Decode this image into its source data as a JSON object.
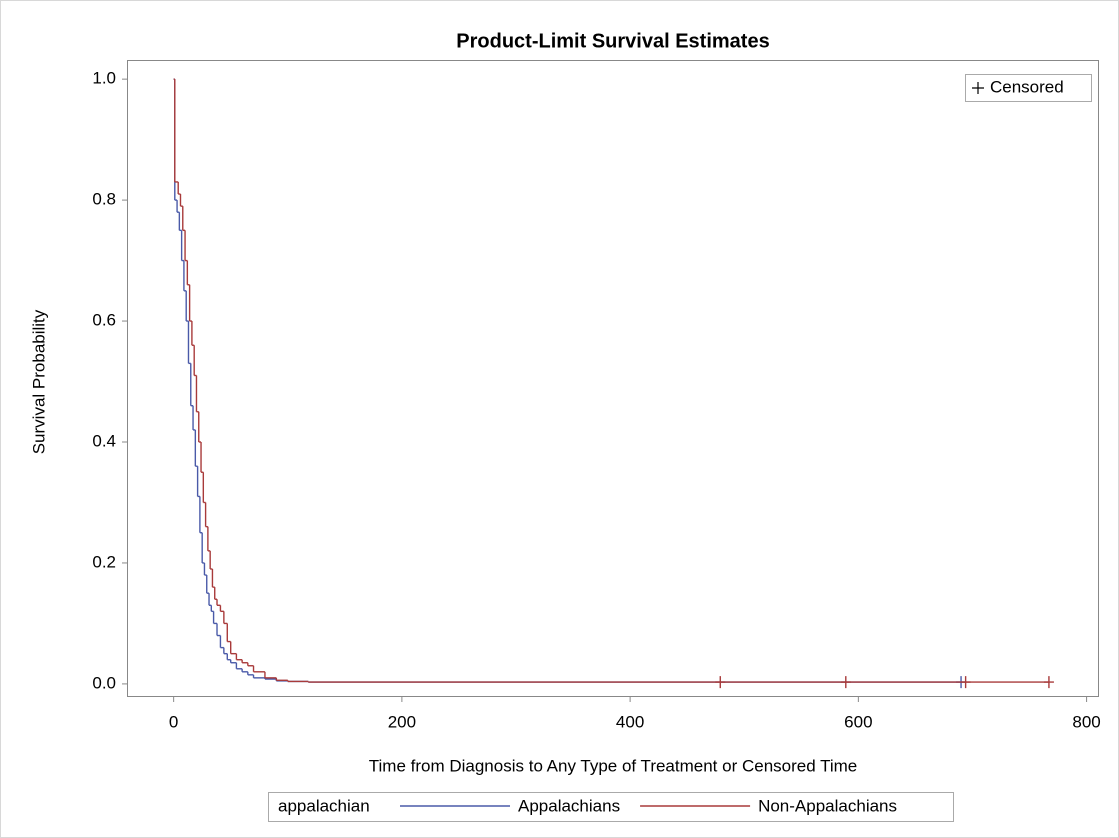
{
  "chart_data": {
    "type": "step",
    "title": "Product-Limit Survival Estimates",
    "x_label": "Time from Diagnosis to Any Type of Treatment or Censored Time",
    "y_label": "Survival Probability",
    "censored_label": "Censored",
    "legend_title": "appalachian",
    "xlim": [
      -40,
      810
    ],
    "ylim": [
      -0.02,
      1.03
    ],
    "xticks": [
      0,
      200,
      400,
      600,
      800
    ],
    "yticks": [
      {
        "value": 0,
        "label": "0.0"
      },
      {
        "value": 0.2,
        "label": "0.2"
      },
      {
        "value": 0.4,
        "label": "0.4"
      },
      {
        "value": 0.6,
        "label": "0.6"
      },
      {
        "value": 0.8,
        "label": "0.8"
      },
      {
        "value": 1,
        "label": "1.0"
      }
    ],
    "series": [
      {
        "name": "Appalachians",
        "color": "#4a5aa8",
        "x": [
          0,
          1,
          3,
          5,
          7,
          9,
          11,
          13,
          15,
          17,
          19,
          21,
          23,
          25,
          27,
          29,
          31,
          33,
          35,
          38,
          41,
          44,
          47,
          50,
          55,
          60,
          65,
          70,
          80,
          90,
          100,
          118,
          690
        ],
        "values": [
          1.0,
          0.8,
          0.78,
          0.75,
          0.7,
          0.65,
          0.6,
          0.53,
          0.46,
          0.42,
          0.36,
          0.31,
          0.25,
          0.2,
          0.18,
          0.15,
          0.13,
          0.12,
          0.1,
          0.08,
          0.06,
          0.05,
          0.04,
          0.035,
          0.025,
          0.02,
          0.015,
          0.01,
          0.008,
          0.005,
          0.004,
          0.003,
          0.003
        ],
        "censored_x": [
          690
        ],
        "censored_values": [
          0.003
        ]
      },
      {
        "name": "Non-Appalachians",
        "color": "#a83a3a",
        "x": [
          0,
          1,
          4,
          6,
          8,
          10,
          12,
          14,
          16,
          18,
          20,
          22,
          24,
          26,
          28,
          30,
          32,
          34,
          36,
          38,
          41,
          44,
          47,
          50,
          55,
          60,
          65,
          70,
          80,
          90,
          100,
          118,
          767
        ],
        "values": [
          1.0,
          0.83,
          0.81,
          0.79,
          0.75,
          0.7,
          0.66,
          0.6,
          0.56,
          0.51,
          0.45,
          0.4,
          0.35,
          0.3,
          0.26,
          0.22,
          0.19,
          0.16,
          0.14,
          0.13,
          0.12,
          0.1,
          0.07,
          0.05,
          0.04,
          0.035,
          0.03,
          0.02,
          0.01,
          0.006,
          0.004,
          0.003,
          0.003
        ],
        "censored_x": [
          479,
          589,
          694,
          767
        ],
        "censored_values": [
          0.003,
          0.003,
          0.003,
          0.003
        ]
      }
    ]
  }
}
